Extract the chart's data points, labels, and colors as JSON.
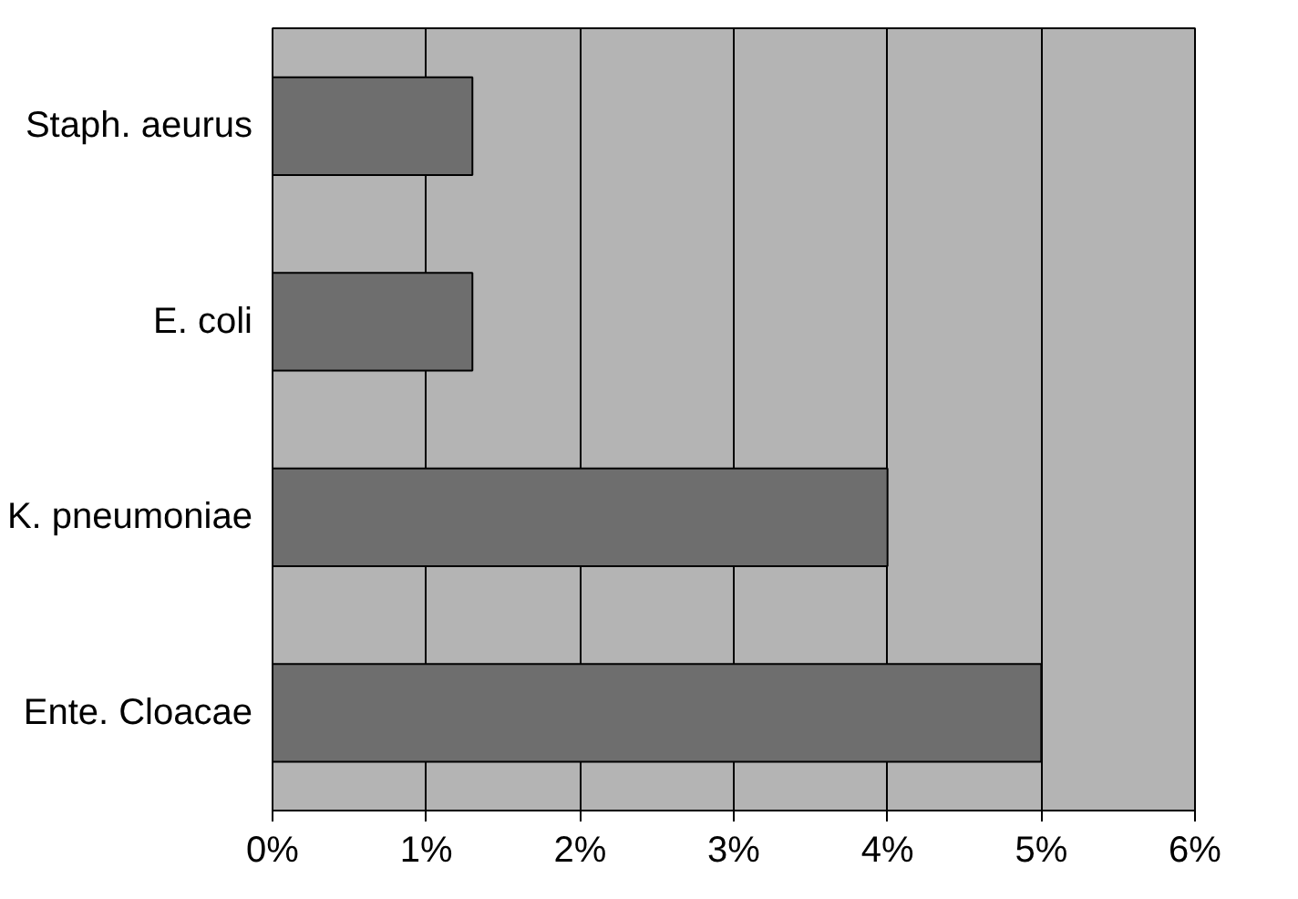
{
  "chart_data": {
    "type": "bar",
    "orientation": "horizontal",
    "categories": [
      "Staph. aeurus",
      "E. coli",
      "K. pneumoniae",
      "Ente. Cloacae"
    ],
    "values": [
      1.3,
      1.3,
      4,
      5
    ],
    "color": "#6e6e6e",
    "xlim": [
      0,
      6
    ],
    "xticks": [
      {
        "value": 0,
        "label": "0%"
      },
      {
        "value": 1,
        "label": "1%"
      },
      {
        "value": 2,
        "label": "2%"
      },
      {
        "value": 3,
        "label": "3%"
      },
      {
        "value": 4,
        "label": "4%"
      },
      {
        "value": 5,
        "label": "5%"
      },
      {
        "value": 6,
        "label": "6%"
      }
    ],
    "grid": "x"
  }
}
